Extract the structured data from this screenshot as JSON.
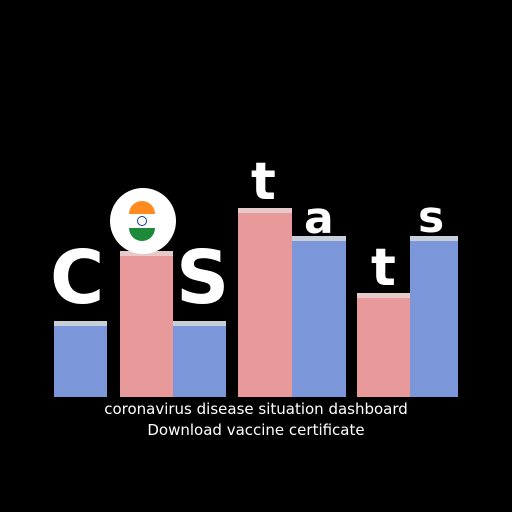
{
  "logo": {
    "letters": [
      "C",
      "S",
      "t",
      "a",
      "t",
      "s"
    ],
    "flag_icon": "india-flag-icon"
  },
  "tagline": "coronavirus disease situation dashboard",
  "subtitle": "Download vaccine certificate",
  "colors": {
    "background": "#000000",
    "bar_blue": "#7b97da",
    "bar_pink": "#e8999a",
    "text": "#ffffff"
  }
}
